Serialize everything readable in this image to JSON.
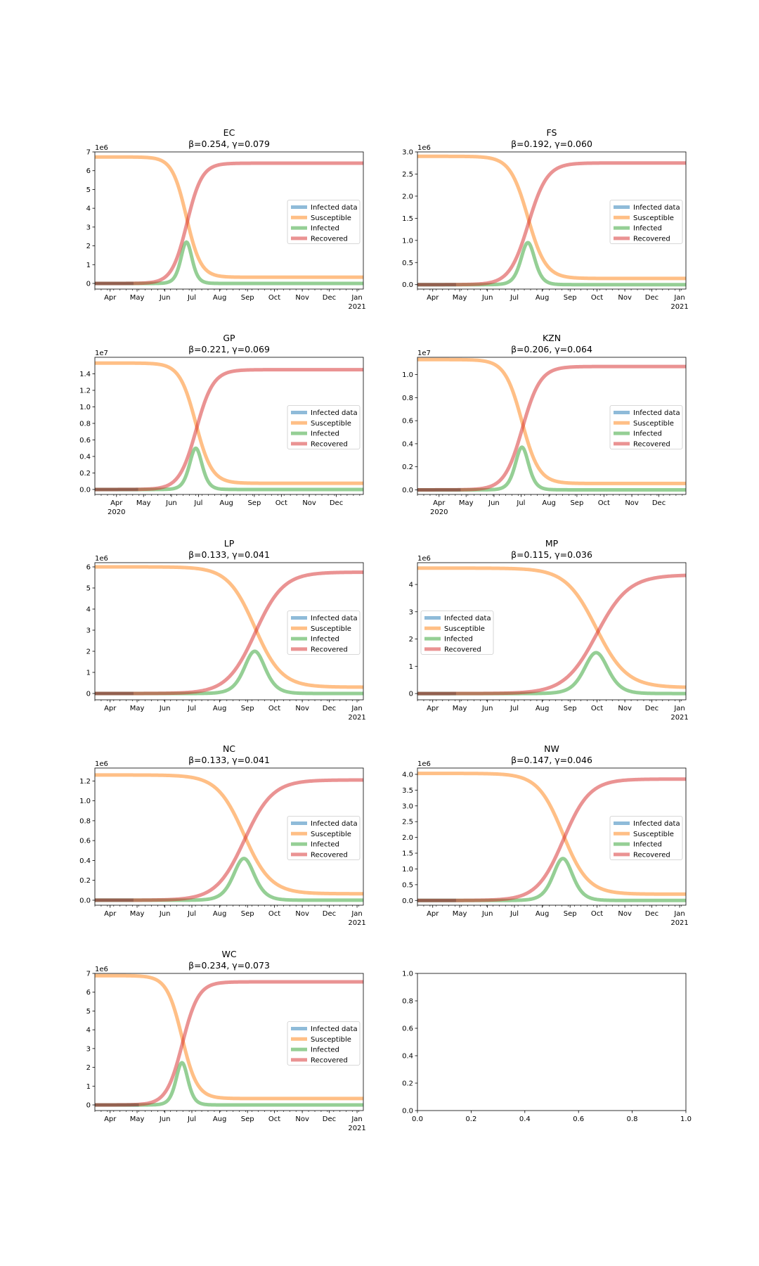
{
  "colors": {
    "infected_data": "#1f77b4",
    "susceptible": "#ff7f0e",
    "infected": "#2ca02c",
    "recovered": "#d62728"
  },
  "legend_labels": [
    "Infected data",
    "Susceptible",
    "Infected",
    "Recovered"
  ],
  "chart_data": [
    {
      "type": "line",
      "title": "EC",
      "subtitle": "β=0.254, γ=0.079",
      "xlim": [
        "2020-03-15",
        "2021-01-08"
      ],
      "x_ticks": [
        "2020-04-01",
        "2020-05-01",
        "2020-06-01",
        "2020-07-01",
        "2020-08-01",
        "2020-09-01",
        "2020-10-01",
        "2020-11-01",
        "2020-12-01",
        "2021-01-01"
      ],
      "x_tick_labels": [
        "Apr",
        "May",
        "Jun",
        "Jul",
        "Aug",
        "Sep",
        "Oct",
        "Nov",
        "Dec",
        "Jan"
      ],
      "x_year_label": "2021",
      "y_offset_label": "1e6",
      "ylim": [
        -0.3,
        7.0
      ],
      "y_ticks": [
        0,
        1,
        2,
        3,
        4,
        5,
        6,
        7
      ],
      "y_tick_labels": [
        "0",
        "1",
        "2",
        "3",
        "4",
        "5",
        "6",
        "7"
      ],
      "legend_position": "center-right",
      "population": 6.73,
      "peak_date": "2020-06-25",
      "peak_infected": 2.2,
      "final_recovered": 6.4,
      "final_susceptible": 0.33,
      "transition_width_days": 8,
      "infected_data_end": "2020-04-27"
    },
    {
      "type": "line",
      "title": "FS",
      "subtitle": "β=0.192, γ=0.060",
      "xlim": [
        "2020-03-15",
        "2021-01-08"
      ],
      "x_ticks": [
        "2020-04-01",
        "2020-05-01",
        "2020-06-01",
        "2020-07-01",
        "2020-08-01",
        "2020-09-01",
        "2020-10-01",
        "2020-11-01",
        "2020-12-01",
        "2021-01-01"
      ],
      "x_tick_labels": [
        "Apr",
        "May",
        "Jun",
        "Jul",
        "Aug",
        "Sep",
        "Oct",
        "Nov",
        "Dec",
        "Jan"
      ],
      "x_year_label": "2021",
      "y_offset_label": "1e6",
      "ylim": [
        -0.1,
        3.0
      ],
      "y_ticks": [
        0,
        0.5,
        1.0,
        1.5,
        2.0,
        2.5,
        3.0
      ],
      "y_tick_labels": [
        "0.0",
        "0.5",
        "1.0",
        "1.5",
        "2.0",
        "2.5",
        "3.0"
      ],
      "legend_position": "center-right",
      "population": 2.9,
      "peak_date": "2020-07-16",
      "peak_infected": 0.95,
      "final_recovered": 2.75,
      "final_susceptible": 0.14,
      "transition_width_days": 10,
      "infected_data_end": "2020-04-27"
    },
    {
      "type": "line",
      "title": "GP",
      "subtitle": "β=0.221, γ=0.069",
      "xlim": [
        "2020-03-08",
        "2020-12-31"
      ],
      "x_ticks": [
        "2020-04-01",
        "2020-05-01",
        "2020-06-01",
        "2020-07-01",
        "2020-08-01",
        "2020-09-01",
        "2020-10-01",
        "2020-11-01",
        "2020-12-01"
      ],
      "x_tick_labels": [
        "Apr",
        "May",
        "Jun",
        "Jul",
        "Aug",
        "Sep",
        "Oct",
        "Nov",
        "Dec"
      ],
      "x_year_label": "2020",
      "y_offset_label": "1e7",
      "ylim": [
        -0.06,
        1.6
      ],
      "y_ticks": [
        0,
        0.2,
        0.4,
        0.6,
        0.8,
        1.0,
        1.2,
        1.4
      ],
      "y_tick_labels": [
        "0.0",
        "0.2",
        "0.4",
        "0.6",
        "0.8",
        "1.0",
        "1.2",
        "1.4"
      ],
      "legend_position": "center-right",
      "population": 1.53,
      "peak_date": "2020-06-28",
      "peak_infected": 0.5,
      "final_recovered": 1.45,
      "final_susceptible": 0.075,
      "transition_width_days": 9,
      "infected_data_end": "2020-04-25"
    },
    {
      "type": "line",
      "title": "KZN",
      "subtitle": "β=0.206, γ=0.064",
      "xlim": [
        "2020-03-08",
        "2020-12-31"
      ],
      "x_ticks": [
        "2020-04-01",
        "2020-05-01",
        "2020-06-01",
        "2020-07-01",
        "2020-08-01",
        "2020-09-01",
        "2020-10-01",
        "2020-11-01",
        "2020-12-01"
      ],
      "x_tick_labels": [
        "Apr",
        "May",
        "Jun",
        "Jul",
        "Aug",
        "Sep",
        "Oct",
        "Nov",
        "Dec"
      ],
      "x_year_label": "2020",
      "y_offset_label": "1e7",
      "ylim": [
        -0.04,
        1.15
      ],
      "y_ticks": [
        0,
        0.2,
        0.4,
        0.6,
        0.8,
        1.0
      ],
      "y_tick_labels": [
        "0.0",
        "0.2",
        "0.4",
        "0.6",
        "0.8",
        "1.0"
      ],
      "legend_position": "center-right",
      "population": 1.13,
      "peak_date": "2020-07-02",
      "peak_infected": 0.37,
      "final_recovered": 1.07,
      "final_susceptible": 0.055,
      "transition_width_days": 9.5,
      "infected_data_end": "2020-04-25"
    },
    {
      "type": "line",
      "title": "LP",
      "subtitle": "β=0.133, γ=0.041",
      "xlim": [
        "2020-03-15",
        "2021-01-08"
      ],
      "x_ticks": [
        "2020-04-01",
        "2020-05-01",
        "2020-06-01",
        "2020-07-01",
        "2020-08-01",
        "2020-09-01",
        "2020-10-01",
        "2020-11-01",
        "2020-12-01",
        "2021-01-01"
      ],
      "x_tick_labels": [
        "Apr",
        "May",
        "Jun",
        "Jul",
        "Aug",
        "Sep",
        "Oct",
        "Nov",
        "Dec",
        "Jan"
      ],
      "x_year_label": "2021",
      "y_offset_label": "1e6",
      "ylim": [
        -0.3,
        6.2
      ],
      "y_ticks": [
        0,
        1,
        2,
        3,
        4,
        5,
        6
      ],
      "y_tick_labels": [
        "0",
        "1",
        "2",
        "3",
        "4",
        "5",
        "6"
      ],
      "legend_position": "center-right",
      "population": 6.0,
      "peak_date": "2020-09-09",
      "peak_infected": 2.0,
      "final_recovered": 5.75,
      "final_susceptible": 0.3,
      "transition_width_days": 15,
      "infected_data_end": "2020-04-27"
    },
    {
      "type": "line",
      "title": "MP",
      "subtitle": "β=0.115, γ=0.036",
      "xlim": [
        "2020-03-15",
        "2021-01-08"
      ],
      "x_ticks": [
        "2020-04-01",
        "2020-05-01",
        "2020-06-01",
        "2020-07-01",
        "2020-08-01",
        "2020-09-01",
        "2020-10-01",
        "2020-11-01",
        "2020-12-01",
        "2021-01-01"
      ],
      "x_tick_labels": [
        "Apr",
        "May",
        "Jun",
        "Jul",
        "Aug",
        "Sep",
        "Oct",
        "Nov",
        "Dec",
        "Jan"
      ],
      "x_year_label": "2021",
      "y_offset_label": "1e6",
      "ylim": [
        -0.23,
        4.8
      ],
      "y_ticks": [
        0,
        1,
        2,
        3,
        4
      ],
      "y_tick_labels": [
        "0",
        "1",
        "2",
        "3",
        "4"
      ],
      "legend_position": "center-left",
      "population": 4.6,
      "peak_date": "2020-09-30",
      "peak_infected": 1.5,
      "final_recovered": 4.35,
      "final_susceptible": 0.22,
      "transition_width_days": 17,
      "infected_data_end": "2020-04-27"
    },
    {
      "type": "line",
      "title": "NC",
      "subtitle": "β=0.133, γ=0.041",
      "xlim": [
        "2020-03-15",
        "2021-01-08"
      ],
      "x_ticks": [
        "2020-04-01",
        "2020-05-01",
        "2020-06-01",
        "2020-07-01",
        "2020-08-01",
        "2020-09-01",
        "2020-10-01",
        "2020-11-01",
        "2020-12-01",
        "2021-01-01"
      ],
      "x_tick_labels": [
        "Apr",
        "May",
        "Jun",
        "Jul",
        "Aug",
        "Sep",
        "Oct",
        "Nov",
        "Dec",
        "Jan"
      ],
      "x_year_label": "2021",
      "y_offset_label": "1e6",
      "ylim": [
        -0.05,
        1.33
      ],
      "y_ticks": [
        0,
        0.2,
        0.4,
        0.6,
        0.8,
        1.0,
        1.2
      ],
      "y_tick_labels": [
        "0.0",
        "0.2",
        "0.4",
        "0.6",
        "0.8",
        "1.0",
        "1.2"
      ],
      "legend_position": "center-right",
      "population": 1.26,
      "peak_date": "2020-08-28",
      "peak_infected": 0.42,
      "final_recovered": 1.21,
      "final_susceptible": 0.065,
      "transition_width_days": 15,
      "infected_data_end": "2020-04-27"
    },
    {
      "type": "line",
      "title": "NW",
      "subtitle": "β=0.147, γ=0.046",
      "xlim": [
        "2020-03-15",
        "2021-01-08"
      ],
      "x_ticks": [
        "2020-04-01",
        "2020-05-01",
        "2020-06-01",
        "2020-07-01",
        "2020-08-01",
        "2020-09-01",
        "2020-10-01",
        "2020-11-01",
        "2020-12-01",
        "2021-01-01"
      ],
      "x_tick_labels": [
        "Apr",
        "May",
        "Jun",
        "Jul",
        "Aug",
        "Sep",
        "Oct",
        "Nov",
        "Dec",
        "Jan"
      ],
      "x_year_label": "2021",
      "y_offset_label": "1e6",
      "ylim": [
        -0.15,
        4.2
      ],
      "y_ticks": [
        0,
        0.5,
        1.0,
        1.5,
        2.0,
        2.5,
        3.0,
        3.5,
        4.0
      ],
      "y_tick_labels": [
        "0.0",
        "0.5",
        "1.0",
        "1.5",
        "2.0",
        "2.5",
        "3.0",
        "3.5",
        "4.0"
      ],
      "legend_position": "center-right",
      "population": 4.03,
      "peak_date": "2020-08-24",
      "peak_infected": 1.33,
      "final_recovered": 3.85,
      "final_susceptible": 0.2,
      "transition_width_days": 14,
      "infected_data_end": "2020-04-27"
    },
    {
      "type": "line",
      "title": "WC",
      "subtitle": "β=0.234, γ=0.073",
      "xlim": [
        "2020-03-15",
        "2021-01-08"
      ],
      "x_ticks": [
        "2020-04-01",
        "2020-05-01",
        "2020-06-01",
        "2020-07-01",
        "2020-08-01",
        "2020-09-01",
        "2020-10-01",
        "2020-11-01",
        "2020-12-01",
        "2021-01-01"
      ],
      "x_tick_labels": [
        "Apr",
        "May",
        "Jun",
        "Jul",
        "Aug",
        "Sep",
        "Oct",
        "Nov",
        "Dec",
        "Jan"
      ],
      "x_year_label": "2021",
      "y_offset_label": "1e6",
      "ylim": [
        -0.3,
        7.0
      ],
      "y_ticks": [
        0,
        1,
        2,
        3,
        4,
        5,
        6,
        7
      ],
      "y_tick_labels": [
        "0",
        "1",
        "2",
        "3",
        "4",
        "5",
        "6",
        "7"
      ],
      "legend_position": "center-right",
      "population": 6.88,
      "peak_date": "2020-06-20",
      "peak_infected": 2.25,
      "final_recovered": 6.55,
      "final_susceptible": 0.34,
      "transition_width_days": 8.5,
      "infected_data_end": "2020-05-03"
    },
    {
      "type": "empty",
      "xlim": [
        0,
        1
      ],
      "ylim": [
        0,
        1
      ],
      "x_ticks": [
        0,
        0.2,
        0.4,
        0.6,
        0.8,
        1.0
      ],
      "x_tick_labels": [
        "0.0",
        "0.2",
        "0.4",
        "0.6",
        "0.8",
        "1.0"
      ],
      "y_ticks": [
        0,
        0.2,
        0.4,
        0.6,
        0.8,
        1.0
      ],
      "y_tick_labels": [
        "0.0",
        "0.2",
        "0.4",
        "0.6",
        "0.8",
        "1.0"
      ]
    }
  ]
}
